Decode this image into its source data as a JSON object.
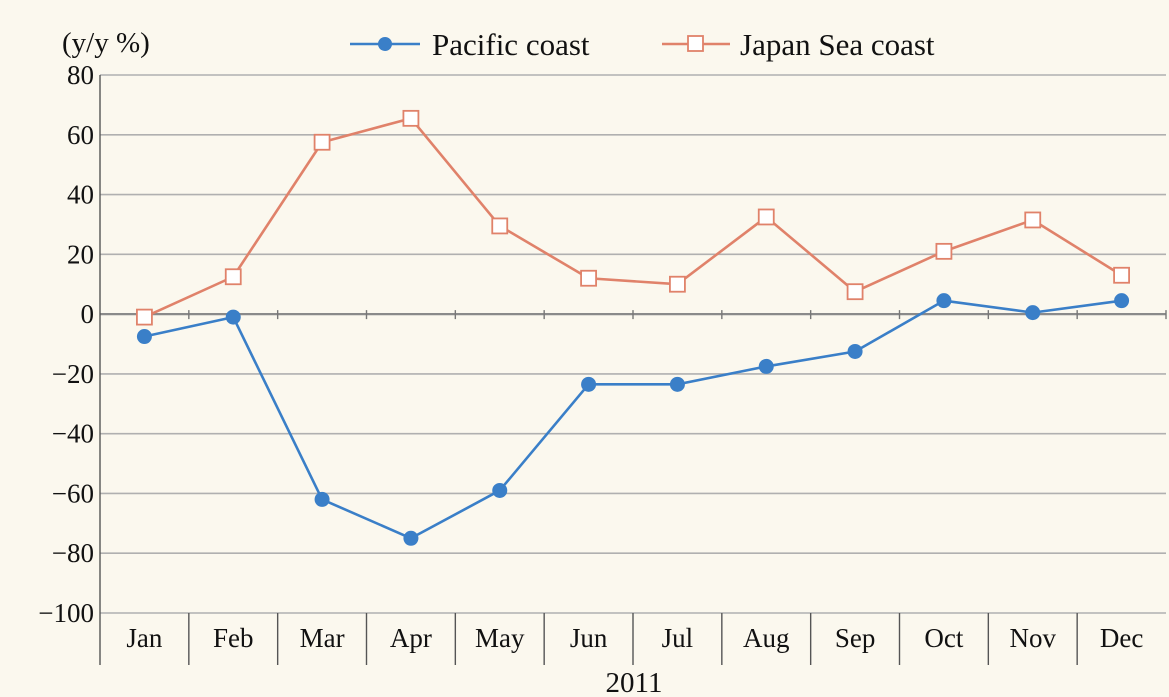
{
  "chart_data": {
    "type": "line",
    "unit_label": "(y/y %)",
    "xlabel": "2011",
    "ylabel": "",
    "categories": [
      "Jan",
      "Feb",
      "Mar",
      "Apr",
      "May",
      "Jun",
      "Jul",
      "Aug",
      "Sep",
      "Oct",
      "Nov",
      "Dec"
    ],
    "ylim": [
      -100,
      80
    ],
    "yticks": [
      "80",
      "60",
      "40",
      "20",
      "0",
      "−20",
      "−40",
      "−60",
      "−80",
      "−100"
    ],
    "grid": true,
    "legend_position": "top",
    "series": [
      {
        "name": "Pacific coast",
        "color": "#3a7fc8",
        "marker": "filled-circle",
        "values": [
          -7.5,
          -1,
          -62,
          -75,
          -59,
          -23.5,
          -23.5,
          -17.5,
          -12.5,
          4.5,
          0.5,
          4.5
        ]
      },
      {
        "name": "Japan Sea coast",
        "color": "#e0826a",
        "marker": "open-square",
        "values": [
          -1,
          12.5,
          57.5,
          65.5,
          29.5,
          12,
          10,
          32.5,
          7.5,
          21,
          31.5,
          13
        ]
      }
    ]
  }
}
